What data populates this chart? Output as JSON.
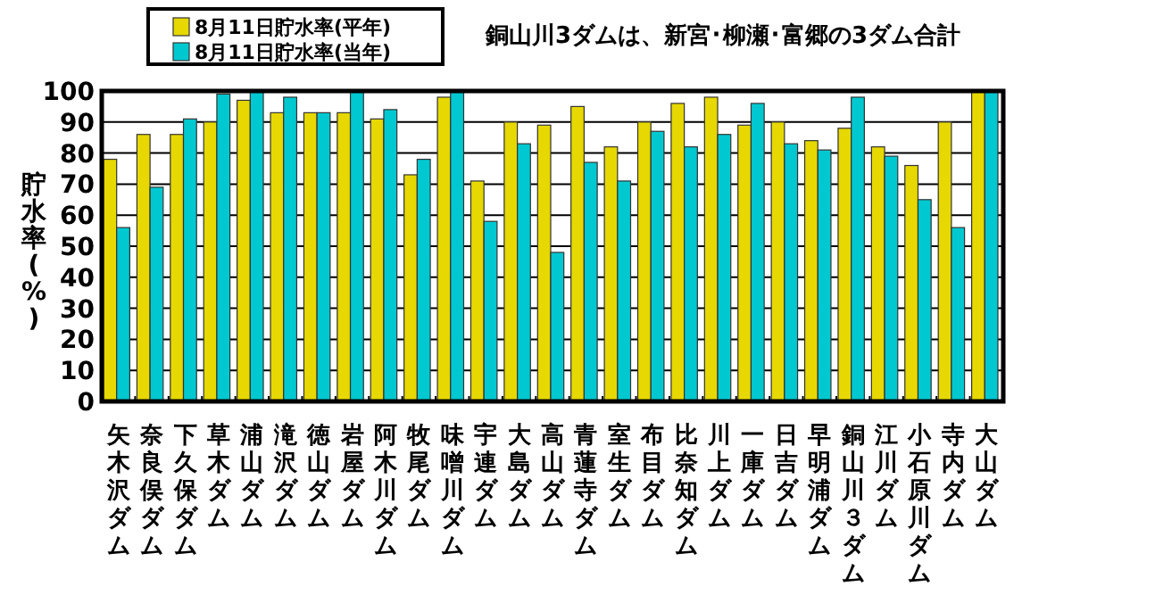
{
  "chart_data": {
    "type": "bar",
    "title": "銅山川3ダムは、新宮･柳瀬･富郷の3ダム合計",
    "ylabel": "貯水率(%)",
    "categories": [
      "矢木沢ダム",
      "奈良俣ダム",
      "下久保ダム",
      "草木ダム",
      "浦山ダム",
      "滝沢ダム",
      "徳山ダム",
      "岩屋ダム",
      "阿木川ダム",
      "牧尾ダム",
      "味噌川ダム",
      "宇連ダム",
      "大島ダム",
      "高山ダム",
      "青蓮寺ダム",
      "室生ダム",
      "布目ダム",
      "比奈知ダム",
      "川上ダム",
      "一庫ダム",
      "日吉ダム",
      "早明浦ダム",
      "銅山川３ダム",
      "江川ダム",
      "小石原川ダム",
      "寺内ダム",
      "大山ダム"
    ],
    "series": [
      {
        "name": "8月11日貯水率(平年)",
        "color": "#e6d800",
        "values": [
          78,
          86,
          86,
          90,
          97,
          93,
          93,
          93,
          91,
          73,
          98,
          71,
          90,
          89,
          95,
          82,
          90,
          96,
          98,
          89,
          90,
          84,
          88,
          82,
          76,
          90,
          100
        ]
      },
      {
        "name": "8月11日貯水率(当年)",
        "color": "#00c8d0",
        "values": [
          56,
          69,
          91,
          99,
          100,
          98,
          93,
          100,
          94,
          78,
          100,
          58,
          83,
          48,
          77,
          71,
          87,
          82,
          86,
          96,
          83,
          81,
          98,
          79,
          65,
          56,
          100
        ]
      }
    ],
    "ylim": [
      0,
      100
    ],
    "yticks": [
      0,
      10,
      20,
      30,
      40,
      50,
      60,
      70,
      80,
      90,
      100
    ],
    "grid": "y",
    "legend": "top"
  }
}
